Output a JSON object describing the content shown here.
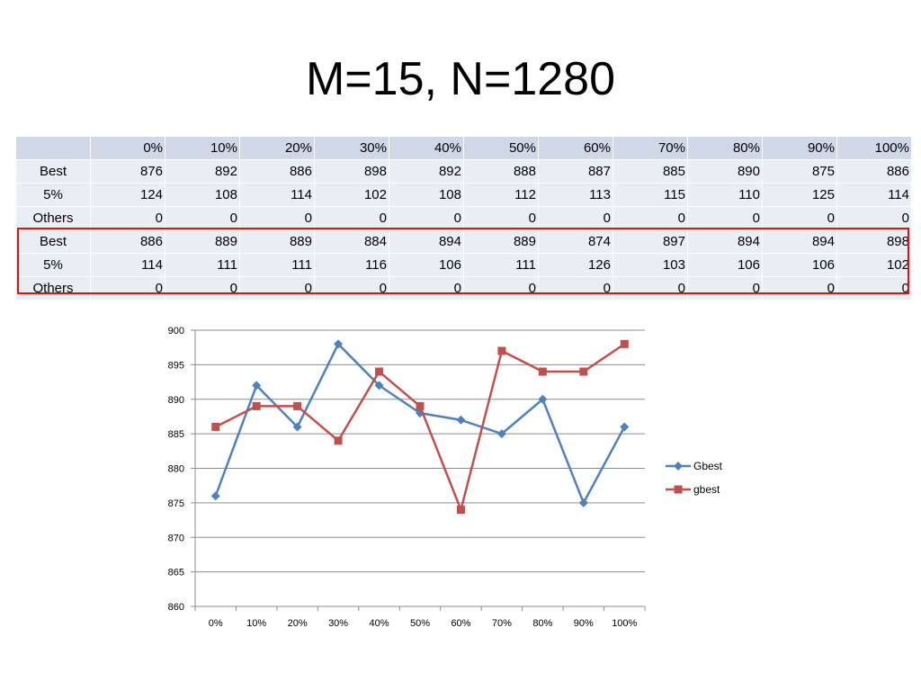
{
  "slide": {
    "title": "M=15, N=1280"
  },
  "table": {
    "columns": [
      "0%",
      "10%",
      "20%",
      "30%",
      "40%",
      "50%",
      "60%",
      "70%",
      "80%",
      "90%",
      "100%"
    ],
    "rows": [
      {
        "label": "Best",
        "values": [
          "876",
          "892",
          "886",
          "898",
          "892",
          "888",
          "887",
          "885",
          "890",
          "875",
          "886"
        ]
      },
      {
        "label": "5%",
        "values": [
          "124",
          "108",
          "114",
          "102",
          "108",
          "112",
          "113",
          "115",
          "110",
          "125",
          "114"
        ]
      },
      {
        "label": "Others",
        "values": [
          "0",
          "0",
          "0",
          "0",
          "0",
          "0",
          "0",
          "0",
          "0",
          "0",
          "0"
        ]
      },
      {
        "label": "Best",
        "values": [
          "886",
          "889",
          "889",
          "884",
          "894",
          "889",
          "874",
          "897",
          "894",
          "894",
          "898"
        ]
      },
      {
        "label": "5%",
        "values": [
          "114",
          "111",
          "111",
          "116",
          "106",
          "111",
          "126",
          "103",
          "106",
          "106",
          "102"
        ]
      },
      {
        "label": "Others",
        "values": [
          "0",
          "0",
          "0",
          "0",
          "0",
          "0",
          "0",
          "0",
          "0",
          "0",
          "0"
        ]
      }
    ],
    "highlight_color": "#e01010"
  },
  "chart_data": {
    "type": "line",
    "categories": [
      "0%",
      "10%",
      "20%",
      "30%",
      "40%",
      "50%",
      "60%",
      "70%",
      "80%",
      "90%",
      "100%"
    ],
    "series": [
      {
        "name": "Gbest",
        "values": [
          876,
          892,
          886,
          898,
          892,
          888,
          887,
          885,
          890,
          875,
          886
        ],
        "color": "#4f81bd",
        "marker": "diamond"
      },
      {
        "name": "gbest",
        "values": [
          886,
          889,
          889,
          884,
          894,
          889,
          874,
          897,
          894,
          894,
          898
        ],
        "color": "#c0504d",
        "marker": "square"
      }
    ],
    "ylim": [
      860,
      900
    ],
    "yticks": [
      860,
      865,
      870,
      875,
      880,
      885,
      890,
      895,
      900
    ],
    "grid": true,
    "legend": "right"
  }
}
